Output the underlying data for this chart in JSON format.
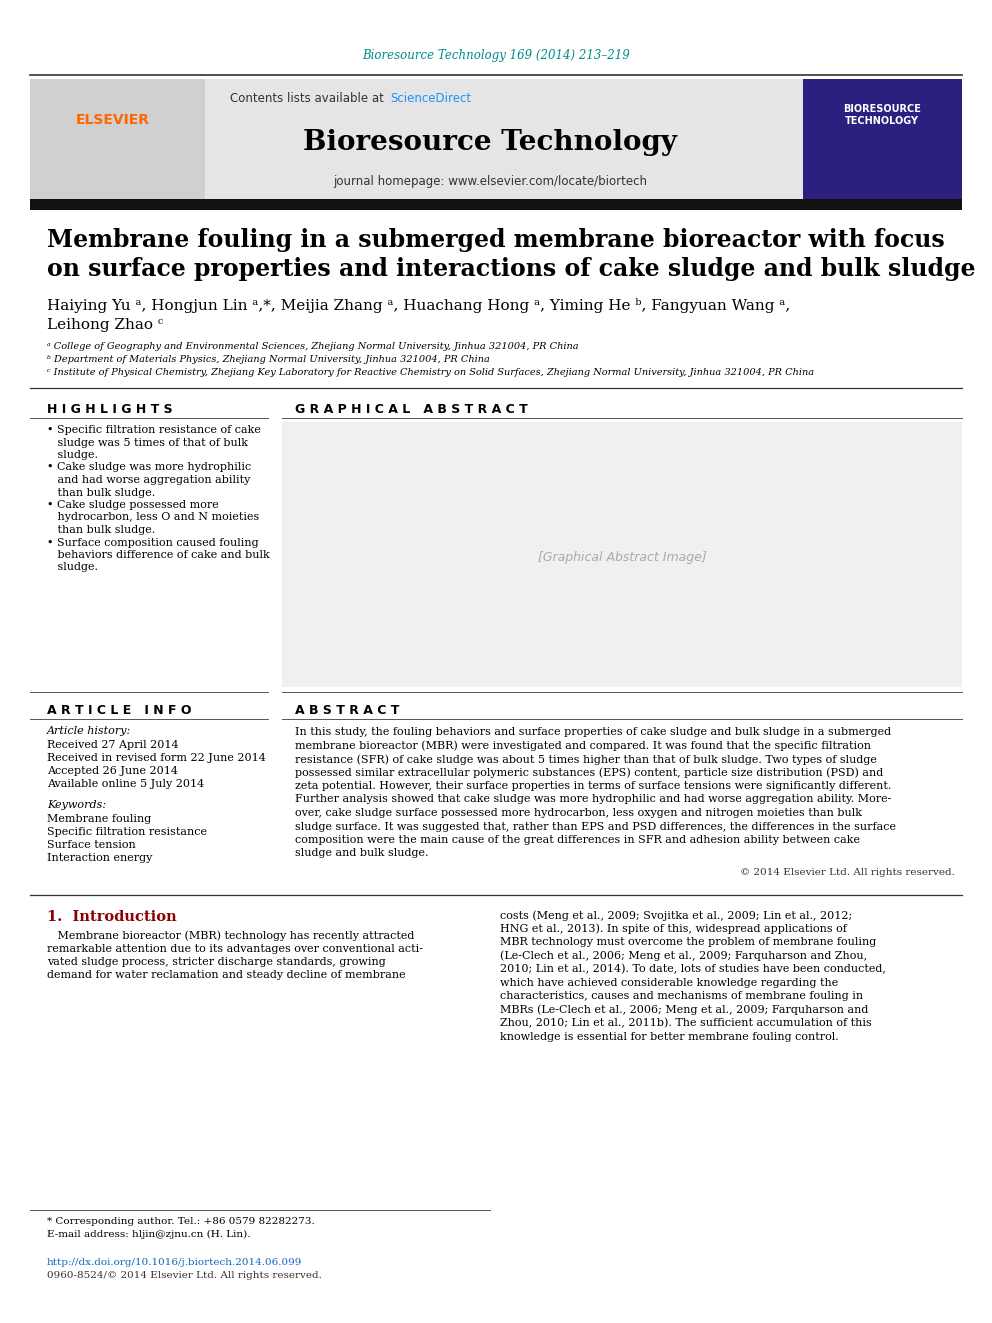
{
  "journal_ref": "Bioresource Technology 169 (2014) 213–219",
  "journal_ref_color": "#008B8B",
  "contents_text": "Contents lists available at ",
  "sciencedirect_text": "ScienceDirect",
  "sciencedirect_color": "#1E90FF",
  "journal_name": "Bioresource Technology",
  "journal_homepage": "journal homepage: www.elsevier.com/locate/biortech",
  "header_bg": "#E5E5E5",
  "black_bar_color": "#111111",
  "title_line1": "Membrane fouling in a submerged membrane bioreactor with focus",
  "title_line2": "on surface properties and interactions of cake sludge and bulk sludge",
  "authors_line1": "Haiying Yu ᵃ, Hongjun Lin ᵃ,*, Meijia Zhang ᵃ, Huachang Hong ᵃ, Yiming He ᵇ, Fangyuan Wang ᵃ,",
  "authors_line2": "Leihong Zhao ᶜ",
  "affil_a": "ᵃ College of Geography and Environmental Sciences, Zhejiang Normal University, Jinhua 321004, PR China",
  "affil_b": "ᵇ Department of Materials Physics, Zhejiang Normal University, Jinhua 321004, PR China",
  "affil_c": "ᶜ Institute of Physical Chemistry, Zhejiang Key Laboratory for Reactive Chemistry on Solid Surfaces, Zhejiang Normal University, Jinhua 321004, PR China",
  "highlights_title": "H I G H L I G H T S",
  "highlight1_line1": "• Specific filtration resistance of cake",
  "highlight1_line2": "   sludge was 5 times of that of bulk",
  "highlight1_line3": "   sludge.",
  "highlight2_line1": "• Cake sludge was more hydrophilic",
  "highlight2_line2": "   and had worse aggregation ability",
  "highlight2_line3": "   than bulk sludge.",
  "highlight3_line1": "• Cake sludge possessed more",
  "highlight3_line2": "   hydrocarbon, less O and N moieties",
  "highlight3_line3": "   than bulk sludge.",
  "highlight4_line1": "• Surface composition caused fouling",
  "highlight4_line2": "   behaviors difference of cake and bulk",
  "highlight4_line3": "   sludge.",
  "graphical_abstract_title": "G R A P H I C A L   A B S T R A C T",
  "article_info_title": "A R T I C L E   I N F O",
  "article_history_label": "Article history:",
  "received": "Received 27 April 2014",
  "received_revised": "Received in revised form 22 June 2014",
  "accepted": "Accepted 26 June 2014",
  "available": "Available online 5 July 2014",
  "keywords_label": "Keywords:",
  "keywords": [
    "Membrane fouling",
    "Specific filtration resistance",
    "Surface tension",
    "Interaction energy"
  ],
  "abstract_title": "A B S T R A C T",
  "abstract_text_l1": "In this study, the fouling behaviors and surface properties of cake sludge and bulk sludge in a submerged",
  "abstract_text_l2": "membrane bioreactor (MBR) were investigated and compared. It was found that the specific filtration",
  "abstract_text_l3": "resistance (SFR) of cake sludge was about 5 times higher than that of bulk sludge. Two types of sludge",
  "abstract_text_l4": "possessed similar extracellular polymeric substances (EPS) content, particle size distribution (PSD) and",
  "abstract_text_l5": "zeta potential. However, their surface properties in terms of surface tensions were significantly different.",
  "abstract_text_l6": "Further analysis showed that cake sludge was more hydrophilic and had worse aggregation ability. More-",
  "abstract_text_l7": "over, cake sludge surface possessed more hydrocarbon, less oxygen and nitrogen moieties than bulk",
  "abstract_text_l8": "sludge surface. It was suggested that, rather than EPS and PSD differences, the differences in the surface",
  "abstract_text_l9": "composition were the main cause of the great differences in SFR and adhesion ability between cake",
  "abstract_text_l10": "sludge and bulk sludge.",
  "copyright_text": "© 2014 Elsevier Ltd. All rights reserved.",
  "intro_title": "1.  Introduction",
  "intro_col1_l1": "   Membrane bioreactor (MBR) technology has recently attracted",
  "intro_col1_l2": "remarkable attention due to its advantages over conventional acti-",
  "intro_col1_l3": "vated sludge process, stricter discharge standards, growing",
  "intro_col1_l4": "demand for water reclamation and steady decline of membrane",
  "intro_col2_l1": "costs (Meng et al., 2009; Svojitka et al., 2009; Lin et al., 2012;",
  "intro_col2_l2": "HNG et al., 2013). In spite of this, widespread applications of",
  "intro_col2_l3": "MBR technology must overcome the problem of membrane fouling",
  "intro_col2_l4": "(Le-Clech et al., 2006; Meng et al., 2009; Farquharson and Zhou,",
  "intro_col2_l5": "2010; Lin et al., 2014). To date, lots of studies have been conducted,",
  "intro_col2_l6": "which have achieved considerable knowledge regarding the",
  "intro_col2_l7": "characteristics, causes and mechanisms of membrane fouling in",
  "intro_col2_l8": "MBRs (Le-Clech et al., 2006; Meng et al., 2009; Farquharson and",
  "intro_col2_l9": "Zhou, 2010; Lin et al., 2011b). The sufficient accumulation of this",
  "intro_col2_l10": "knowledge is essential for better membrane fouling control.",
  "footnote1": "* Corresponding author. Tel.: +86 0579 82282273.",
  "footnote2": "E-mail address: hljin@zjnu.cn (H. Lin).",
  "doi": "http://dx.doi.org/10.1016/j.biortech.2014.06.099",
  "issn": "0960-8524/© 2014 Elsevier Ltd. All rights reserved.",
  "elsevier_color": "#FF6600",
  "link_color": "#1565C0",
  "teal_color": "#008B8B",
  "red_color": "#8B0000"
}
